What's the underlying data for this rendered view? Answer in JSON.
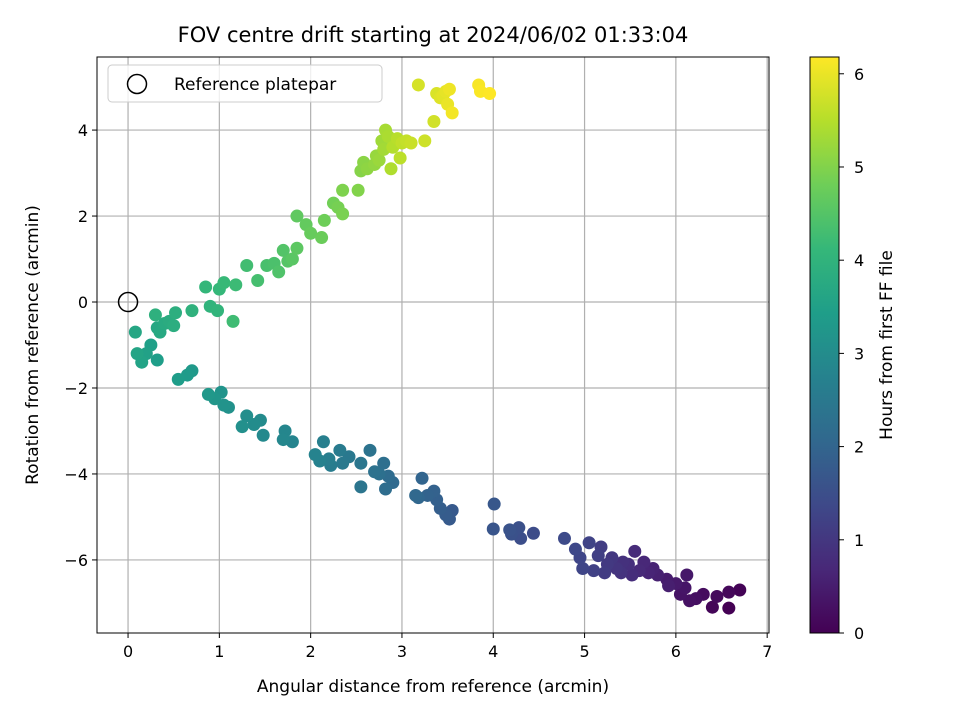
{
  "chart_data": {
    "type": "scatter",
    "title": "FOV centre drift starting at 2024/06/02 01:33:04",
    "xlabel": "Angular distance from reference (arcmin)",
    "ylabel": "Rotation from reference (arcmin)",
    "xlim": [
      -0.34,
      7.02
    ],
    "ylim": [
      -7.7,
      5.7
    ],
    "xticks": [
      "0",
      "1",
      "2",
      "3",
      "4",
      "5",
      "6",
      "7"
    ],
    "yticks": [
      "−6",
      "−4",
      "−2",
      "0",
      "2",
      "4"
    ],
    "grid": true,
    "legend": {
      "position": "top-left",
      "label": "Reference platepar",
      "marker": "open-circle"
    },
    "reference_point": {
      "x": 0,
      "y": 0
    },
    "colorbar": {
      "label": "Hours from first FF file",
      "min": 0,
      "max": 6.18,
      "ticks": [
        "0",
        "1",
        "2",
        "3",
        "4",
        "5",
        "6"
      ],
      "colormap": "viridis",
      "stops": [
        "#440154",
        "#482878",
        "#3e4989",
        "#31688e",
        "#26828e",
        "#1f9e89",
        "#35b779",
        "#6ece58",
        "#b5de2b",
        "#fde725"
      ]
    },
    "marker_color_by": "hours",
    "points": [
      [
        6.58,
        -7.12,
        0.0
      ],
      [
        6.7,
        -6.7,
        0.04
      ],
      [
        6.4,
        -7.1,
        0.08
      ],
      [
        6.58,
        -6.75,
        0.12
      ],
      [
        6.45,
        -6.85,
        0.16
      ],
      [
        6.3,
        -6.8,
        0.2
      ],
      [
        6.22,
        -6.9,
        0.24
      ],
      [
        6.15,
        -6.95,
        0.28
      ],
      [
        6.05,
        -6.8,
        0.32
      ],
      [
        6.1,
        -6.65,
        0.36
      ],
      [
        6.12,
        -6.35,
        0.4
      ],
      [
        6.0,
        -6.55,
        0.44
      ],
      [
        5.9,
        -6.45,
        0.48
      ],
      [
        5.92,
        -6.6,
        0.52
      ],
      [
        5.8,
        -6.35,
        0.56
      ],
      [
        5.75,
        -6.2,
        0.6
      ],
      [
        5.7,
        -6.3,
        0.64
      ],
      [
        5.65,
        -6.05,
        0.68
      ],
      [
        5.6,
        -6.25,
        0.72
      ],
      [
        5.55,
        -5.8,
        0.76
      ],
      [
        5.52,
        -6.35,
        0.8
      ],
      [
        5.48,
        -6.1,
        0.84
      ],
      [
        5.42,
        -6.05,
        0.88
      ],
      [
        5.4,
        -6.3,
        0.92
      ],
      [
        5.35,
        -6.2,
        0.96
      ],
      [
        5.3,
        -5.95,
        1.0
      ],
      [
        5.25,
        -6.1,
        1.04
      ],
      [
        5.22,
        -6.3,
        1.08
      ],
      [
        5.18,
        -5.7,
        1.12
      ],
      [
        5.15,
        -5.9,
        1.16
      ],
      [
        5.1,
        -6.25,
        1.2
      ],
      [
        5.05,
        -5.6,
        1.24
      ],
      [
        4.98,
        -6.2,
        1.28
      ],
      [
        4.95,
        -5.95,
        1.32
      ],
      [
        4.9,
        -5.75,
        1.36
      ],
      [
        4.78,
        -5.5,
        1.4
      ],
      [
        4.44,
        -5.38,
        1.44
      ],
      [
        4.3,
        -5.5,
        1.48
      ],
      [
        4.28,
        -5.25,
        1.52
      ],
      [
        4.2,
        -5.4,
        1.56
      ],
      [
        4.18,
        -5.3,
        1.6
      ],
      [
        4.0,
        -5.28,
        1.64
      ],
      [
        4.01,
        -4.7,
        1.68
      ],
      [
        3.55,
        -4.85,
        1.72
      ],
      [
        3.52,
        -5.05,
        1.76
      ],
      [
        3.48,
        -4.95,
        1.8
      ],
      [
        3.42,
        -4.8,
        1.84
      ],
      [
        3.38,
        -4.6,
        1.88
      ],
      [
        3.35,
        -4.4,
        1.92
      ],
      [
        3.28,
        -4.5,
        1.96
      ],
      [
        3.22,
        -4.1,
        2.0
      ],
      [
        3.18,
        -4.55,
        2.04
      ],
      [
        3.15,
        -4.5,
        2.08
      ],
      [
        2.9,
        -4.2,
        2.12
      ],
      [
        2.85,
        -4.05,
        2.16
      ],
      [
        2.82,
        -4.35,
        2.2
      ],
      [
        2.8,
        -3.75,
        2.24
      ],
      [
        2.75,
        -4.0,
        2.28
      ],
      [
        2.7,
        -3.95,
        2.32
      ],
      [
        2.65,
        -3.45,
        2.36
      ],
      [
        2.55,
        -4.3,
        2.4
      ],
      [
        2.55,
        -3.75,
        2.44
      ],
      [
        2.42,
        -3.6,
        2.48
      ],
      [
        2.35,
        -3.75,
        2.52
      ],
      [
        2.32,
        -3.45,
        2.56
      ],
      [
        2.22,
        -3.8,
        2.6
      ],
      [
        2.2,
        -3.65,
        2.64
      ],
      [
        2.14,
        -3.25,
        2.68
      ],
      [
        2.1,
        -3.7,
        2.72
      ],
      [
        2.05,
        -3.55,
        2.76
      ],
      [
        1.8,
        -3.25,
        2.8
      ],
      [
        1.72,
        -3.0,
        2.84
      ],
      [
        1.7,
        -3.2,
        2.88
      ],
      [
        1.48,
        -3.1,
        2.92
      ],
      [
        1.45,
        -2.75,
        2.96
      ],
      [
        1.38,
        -2.85,
        3.0
      ],
      [
        1.3,
        -2.65,
        3.04
      ],
      [
        1.25,
        -2.9,
        3.08
      ],
      [
        1.1,
        -2.45,
        3.12
      ],
      [
        1.05,
        -2.4,
        3.16
      ],
      [
        1.02,
        -2.1,
        3.2
      ],
      [
        0.95,
        -2.25,
        3.24
      ],
      [
        0.88,
        -2.15,
        3.28
      ],
      [
        0.7,
        -1.6,
        3.32
      ],
      [
        0.65,
        -1.7,
        3.36
      ],
      [
        0.55,
        -1.8,
        3.4
      ],
      [
        0.32,
        -1.35,
        3.44
      ],
      [
        0.25,
        -1.0,
        3.48
      ],
      [
        0.2,
        -1.2,
        3.52
      ],
      [
        0.15,
        -1.4,
        3.56
      ],
      [
        0.1,
        -1.2,
        3.6
      ],
      [
        0.08,
        -0.7,
        3.64
      ],
      [
        0.32,
        -0.6,
        3.68
      ],
      [
        0.35,
        -0.7,
        3.72
      ],
      [
        0.4,
        -0.5,
        3.76
      ],
      [
        0.45,
        -0.45,
        3.8
      ],
      [
        0.5,
        -0.55,
        3.84
      ],
      [
        0.52,
        -0.25,
        3.88
      ],
      [
        0.3,
        -0.3,
        3.92
      ],
      [
        0.7,
        -0.2,
        3.96
      ],
      [
        0.9,
        -0.1,
        4.0
      ],
      [
        0.98,
        -0.2,
        4.04
      ],
      [
        0.85,
        0.35,
        4.08
      ],
      [
        1.0,
        0.3,
        4.12
      ],
      [
        1.05,
        0.45,
        4.16
      ],
      [
        1.18,
        0.4,
        4.2
      ],
      [
        1.15,
        -0.45,
        4.24
      ],
      [
        1.3,
        0.85,
        4.28
      ],
      [
        1.42,
        0.5,
        4.32
      ],
      [
        1.52,
        0.85,
        4.36
      ],
      [
        1.6,
        0.9,
        4.4
      ],
      [
        1.65,
        0.7,
        4.44
      ],
      [
        1.7,
        1.2,
        4.48
      ],
      [
        1.75,
        0.95,
        4.52
      ],
      [
        1.8,
        1.0,
        4.56
      ],
      [
        1.85,
        1.25,
        4.6
      ],
      [
        1.85,
        2.0,
        4.64
      ],
      [
        1.95,
        1.8,
        4.68
      ],
      [
        2.0,
        1.6,
        4.72
      ],
      [
        2.12,
        1.5,
        4.76
      ],
      [
        2.15,
        1.9,
        4.8
      ],
      [
        2.25,
        2.3,
        4.84
      ],
      [
        2.3,
        2.2,
        4.88
      ],
      [
        2.35,
        2.05,
        4.92
      ],
      [
        2.35,
        2.6,
        4.96
      ],
      [
        2.52,
        2.6,
        5.0
      ],
      [
        2.55,
        3.05,
        5.04
      ],
      [
        2.58,
        3.25,
        5.08
      ],
      [
        2.62,
        3.1,
        5.12
      ],
      [
        2.7,
        3.2,
        5.16
      ],
      [
        2.72,
        3.4,
        5.2
      ],
      [
        2.75,
        3.3,
        5.24
      ],
      [
        2.78,
        3.75,
        5.28
      ],
      [
        2.8,
        3.55,
        5.32
      ],
      [
        2.82,
        4.0,
        5.36
      ],
      [
        2.85,
        3.85,
        5.4
      ],
      [
        2.88,
        3.1,
        5.44
      ],
      [
        2.9,
        3.6,
        5.48
      ],
      [
        2.95,
        3.8,
        5.52
      ],
      [
        2.98,
        3.35,
        5.56
      ],
      [
        3.0,
        3.7,
        5.6
      ],
      [
        3.05,
        3.75,
        5.64
      ],
      [
        3.1,
        3.7,
        5.68
      ],
      [
        3.25,
        3.75,
        5.72
      ],
      [
        3.35,
        4.2,
        5.76
      ],
      [
        3.18,
        5.05,
        5.8
      ],
      [
        3.38,
        4.85,
        5.84
      ],
      [
        3.42,
        4.75,
        5.88
      ],
      [
        3.45,
        4.8,
        5.92
      ],
      [
        3.48,
        4.9,
        5.96
      ],
      [
        3.5,
        4.6,
        6.0
      ],
      [
        3.52,
        4.95,
        6.04
      ],
      [
        3.55,
        4.4,
        6.08
      ],
      [
        3.84,
        5.05,
        6.12
      ],
      [
        3.86,
        4.9,
        6.15
      ],
      [
        3.96,
        4.85,
        6.18
      ]
    ]
  }
}
